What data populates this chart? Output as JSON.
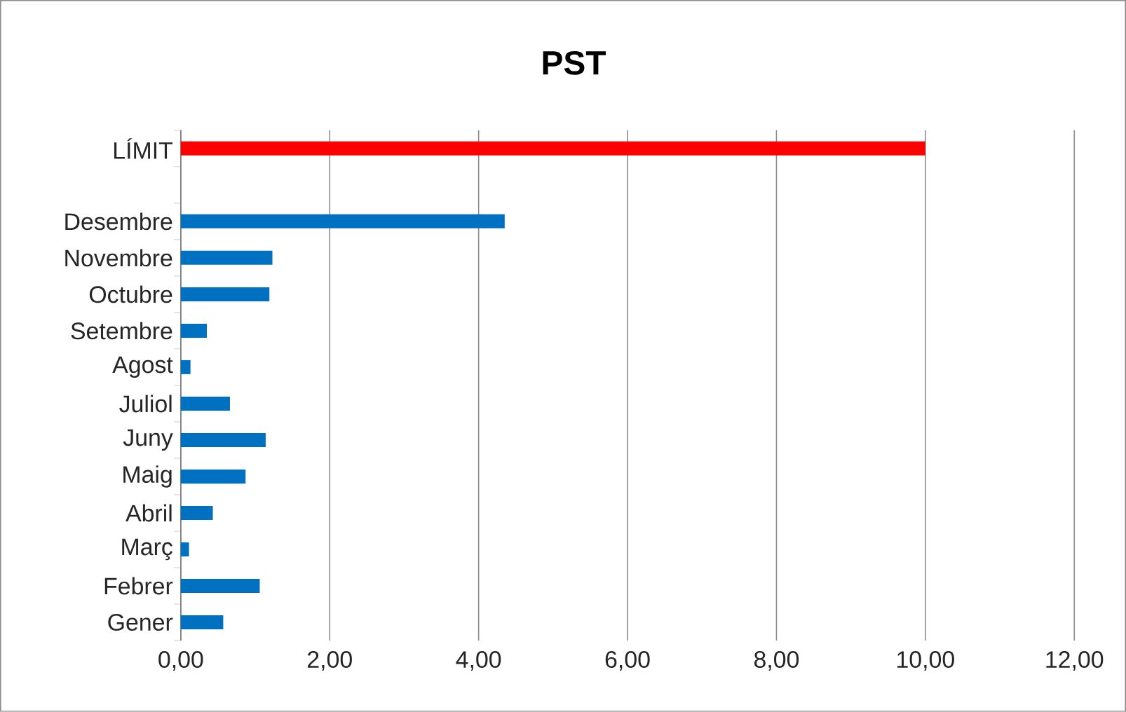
{
  "chart_data": {
    "type": "bar",
    "orientation": "horizontal",
    "title": "PST",
    "categories": [
      "LÍMIT",
      null,
      "Desembre",
      "Novembre",
      "Octubre",
      "Setembre",
      "Agost",
      "Juliol",
      "Juny",
      "Maig",
      "Abril",
      "Març",
      "Febrer",
      "Gener"
    ],
    "values": [
      10,
      null,
      4.35,
      1.23,
      1.19,
      0.35,
      0.13,
      0.66,
      1.14,
      0.87,
      0.43,
      0.11,
      1.06,
      0.57
    ],
    "colors": [
      "#ff0000",
      "#0070c0",
      "#0070c0",
      "#0070c0",
      "#0070c0",
      "#0070c0",
      "#0070c0",
      "#0070c0",
      "#0070c0",
      "#0070c0",
      "#0070c0",
      "#0070c0",
      "#0070c0",
      "#0070c0"
    ],
    "xlim": [
      0,
      12
    ],
    "xticks": [
      {
        "value": 0,
        "label": "0,00"
      },
      {
        "value": 2,
        "label": "2,00"
      },
      {
        "value": 4,
        "label": "4,00"
      },
      {
        "value": 6,
        "label": "6,00"
      },
      {
        "value": 8,
        "label": "8,00"
      },
      {
        "value": 10,
        "label": "10,00"
      },
      {
        "value": 12,
        "label": "12,00"
      }
    ],
    "grid": "x"
  }
}
